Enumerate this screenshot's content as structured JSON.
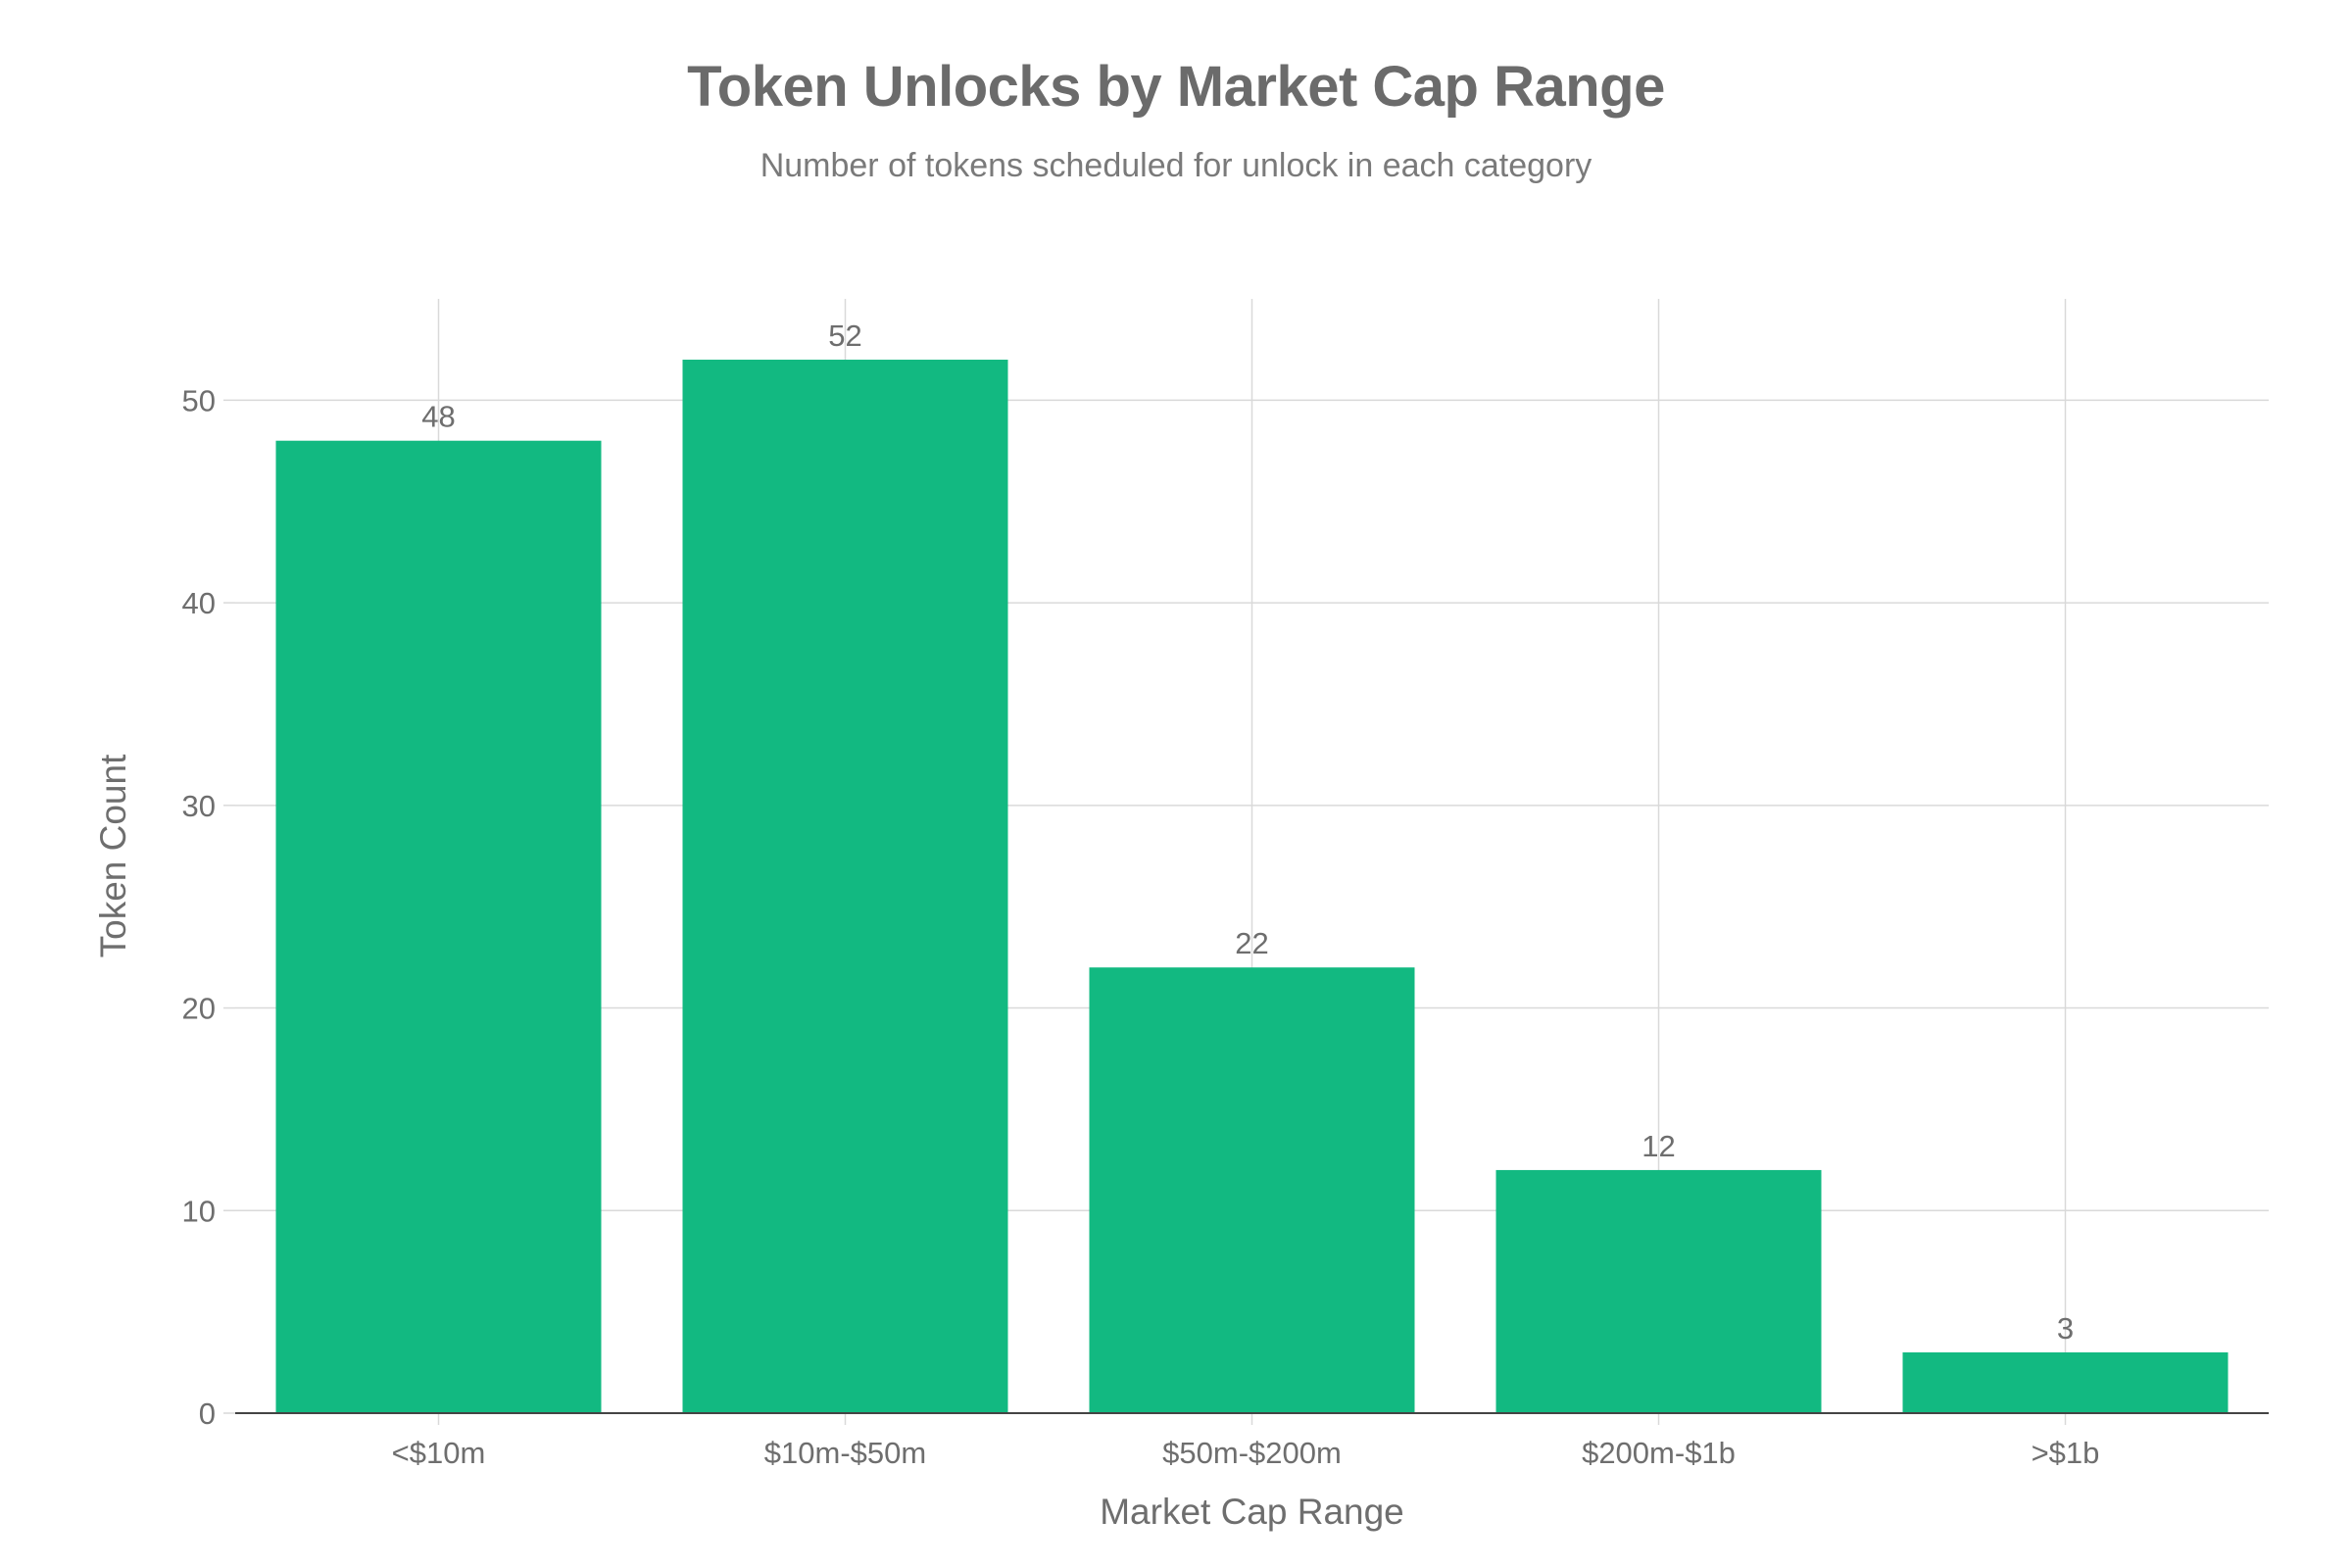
{
  "chart_data": {
    "type": "bar",
    "title": "Token Unlocks by Market Cap Range",
    "subtitle": "Number of tokens scheduled for unlock in each category",
    "xlabel": "Market Cap Range",
    "ylabel": "Token Count",
    "categories": [
      "<$10m",
      "$10m-$50m",
      "$50m-$200m",
      "$200m-$1b",
      ">$1b"
    ],
    "values": [
      48,
      52,
      22,
      12,
      3
    ],
    "data_labels": [
      "48",
      "52",
      "22",
      "12",
      "3"
    ],
    "ylim": [
      0,
      55
    ],
    "yticks": [
      0,
      10,
      20,
      30,
      40,
      50
    ],
    "ytick_labels": [
      "0",
      "10",
      "20",
      "30",
      "40",
      "50"
    ],
    "grid": true,
    "legend": "none",
    "colors": {
      "bar": "#12b981",
      "grid": "#d9d9d9",
      "axis_line": "#444444",
      "text": "#6e6e6e"
    }
  }
}
